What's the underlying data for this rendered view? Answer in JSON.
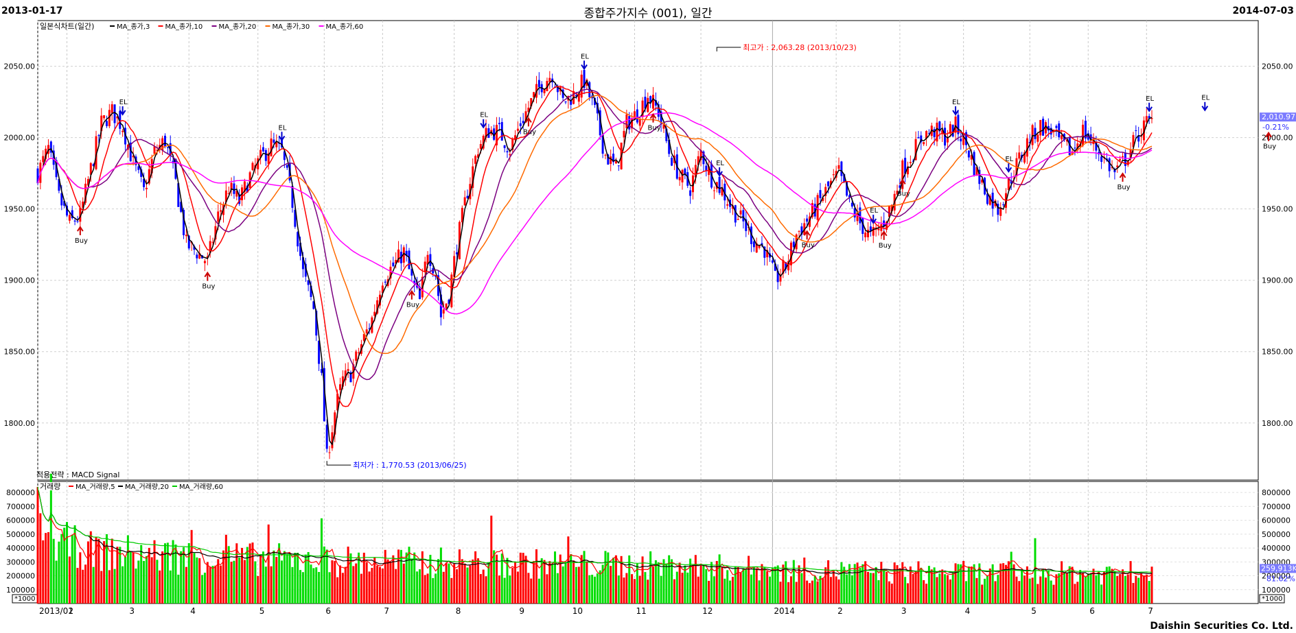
{
  "header": {
    "start_date": "2013-01-17",
    "title": "종합주가지수 (001), 일간",
    "end_date": "2014-07-03"
  },
  "footer": {
    "company": "Daishin Securities Co. Ltd."
  },
  "colors": {
    "up": "#ff0000",
    "down": "#0000ff",
    "ma3": "#000000",
    "ma10": "#ff0000",
    "ma20": "#7b0080",
    "ma30": "#ff6a00",
    "ma60": "#ff00ff",
    "vol_up": "#ff0000",
    "vol_down": "#00dd00",
    "vol_ma5": "#ff0000",
    "vol_ma20": "#000000",
    "vol_ma60": "#00cc00",
    "last_box": "#7b7bff"
  },
  "chart_data": [
    {
      "type": "candlestick",
      "title": "일본식차트(일간)",
      "legend": [
        {
          "label": "MA_종가,3",
          "color": "#000000"
        },
        {
          "label": "MA_종가,10",
          "color": "#ff0000"
        },
        {
          "label": "MA_종가,20",
          "color": "#7b0080"
        },
        {
          "label": "MA_종가,30",
          "color": "#ff6a00"
        },
        {
          "label": "MA_종가,60",
          "color": "#ff00ff"
        }
      ],
      "ylim": [
        1760,
        2082
      ],
      "yticks": [
        "2050.00",
        "2000.00",
        "1950.00",
        "1900.00",
        "1850.00",
        "1800.00"
      ],
      "ytick_values": [
        2050,
        2000,
        1950,
        1900,
        1850,
        1800
      ],
      "last_value": "2,010.97",
      "last_change": "-0.21%",
      "strategy": "적용전략 : MACD Signal",
      "high_annotation": {
        "text": "최고가 : 2,063.28 (2013/10/23)",
        "day": 256,
        "value": 2063.28
      },
      "low_annotation": {
        "text": "최저가 : 1,770.53 (2013/06/25)",
        "day": 109,
        "value": 1770.53
      },
      "signals": [
        {
          "type": "EL",
          "day": 32
        },
        {
          "type": "Buy",
          "day": 16
        },
        {
          "type": "EL",
          "day": 92
        },
        {
          "type": "Buy",
          "day": 64
        },
        {
          "type": "EL",
          "day": 168
        },
        {
          "type": "Buy",
          "day": 141
        },
        {
          "type": "EL",
          "day": 206
        },
        {
          "type": "Buy",
          "day": 185
        },
        {
          "type": "EL",
          "day": 257
        },
        {
          "type": "Buy",
          "day": 232
        },
        {
          "type": "EL",
          "day": 315
        },
        {
          "type": "Buy",
          "day": 290
        },
        {
          "type": "EL",
          "day": 346
        },
        {
          "type": "Buy",
          "day": 319
        },
        {
          "type": "EL",
          "day": 366
        },
        {
          "type": "Buy",
          "day": 326
        },
        {
          "type": "EL",
          "day": 419
        },
        {
          "type": "Buy",
          "day": 409
        },
        {
          "type": "EL",
          "day": 440
        },
        {
          "type": "Buy",
          "day": 464
        }
      ],
      "price_path": [
        [
          0,
          1975
        ],
        [
          4,
          1992
        ],
        [
          8,
          1958
        ],
        [
          12,
          1940
        ],
        [
          16,
          1945
        ],
        [
          20,
          1978
        ],
        [
          24,
          2010
        ],
        [
          28,
          2018
        ],
        [
          32,
          2008
        ],
        [
          36,
          1982
        ],
        [
          40,
          1962
        ],
        [
          44,
          1990
        ],
        [
          48,
          1998
        ],
        [
          52,
          1968
        ],
        [
          56,
          1925
        ],
        [
          60,
          1920
        ],
        [
          64,
          1913
        ],
        [
          68,
          1945
        ],
        [
          72,
          1965
        ],
        [
          76,
          1955
        ],
        [
          80,
          1973
        ],
        [
          84,
          1985
        ],
        [
          88,
          1995
        ],
        [
          92,
          1990
        ],
        [
          96,
          1955
        ],
        [
          100,
          1905
        ],
        [
          104,
          1880
        ],
        [
          107,
          1830
        ],
        [
          109,
          1775
        ],
        [
          112,
          1808
        ],
        [
          115,
          1830
        ],
        [
          118,
          1835
        ],
        [
          122,
          1855
        ],
        [
          126,
          1873
        ],
        [
          130,
          1902
        ],
        [
          134,
          1910
        ],
        [
          138,
          1920
        ],
        [
          141,
          1900
        ],
        [
          144,
          1885
        ],
        [
          147,
          1922
        ],
        [
          150,
          1905
        ],
        [
          152,
          1875
        ],
        [
          155,
          1890
        ],
        [
          158,
          1925
        ],
        [
          162,
          1963
        ],
        [
          166,
          1993
        ],
        [
          170,
          2005
        ],
        [
          174,
          2004
        ],
        [
          178,
          1992
        ],
        [
          182,
          2010
        ],
        [
          186,
          2025
        ],
        [
          190,
          2038
        ],
        [
          194,
          2045
        ],
        [
          198,
          2025
        ],
        [
          202,
          2030
        ],
        [
          206,
          2040
        ],
        [
          210,
          2018
        ],
        [
          214,
          1988
        ],
        [
          218,
          1978
        ],
        [
          222,
          2010
        ],
        [
          226,
          2017
        ],
        [
          230,
          2030
        ],
        [
          234,
          2018
        ],
        [
          238,
          1990
        ],
        [
          242,
          1973
        ],
        [
          246,
          1965
        ],
        [
          250,
          1990
        ],
        [
          254,
          1972
        ],
        [
          258,
          1963
        ],
        [
          262,
          1950
        ],
        [
          266,
          1940
        ],
        [
          270,
          1928
        ],
        [
          274,
          1922
        ],
        [
          278,
          1900
        ],
        [
          282,
          1910
        ],
        [
          286,
          1932
        ],
        [
          290,
          1942
        ],
        [
          294,
          1953
        ],
        [
          298,
          1965
        ],
        [
          302,
          1975
        ],
        [
          306,
          1953
        ],
        [
          310,
          1940
        ],
        [
          314,
          1930
        ],
        [
          318,
          1938
        ],
        [
          322,
          1953
        ],
        [
          326,
          1978
        ],
        [
          330,
          1990
        ],
        [
          334,
          2002
        ],
        [
          338,
          2005
        ],
        [
          342,
          2000
        ],
        [
          346,
          2008
        ],
        [
          350,
          1995
        ],
        [
          354,
          1975
        ],
        [
          358,
          1960
        ],
        [
          362,
          1950
        ],
        [
          366,
          1968
        ],
        [
          370,
          1985
        ],
        [
          374,
          2000
        ],
        [
          378,
          2008
        ],
        [
          382,
          2005
        ],
        [
          386,
          1995
        ],
        [
          390,
          1990
        ],
        [
          394,
          2005
        ],
        [
          398,
          1995
        ],
        [
          402,
          1985
        ],
        [
          406,
          1975
        ],
        [
          410,
          1985
        ],
        [
          414,
          2000
        ],
        [
          418,
          2010
        ],
        [
          420,
          2011
        ]
      ],
      "x_day_max": 420,
      "x_ticks": [
        "2013/01",
        "2",
        "3",
        "4",
        "5",
        "6",
        "7",
        "8",
        "9",
        "10",
        "11",
        "12",
        "2014",
        "2",
        "3",
        "4",
        "5",
        "6",
        "7"
      ],
      "x_tick_days": [
        0,
        11,
        34,
        57,
        83,
        108,
        130,
        157,
        181,
        201,
        225,
        250,
        277,
        301,
        325,
        349,
        374,
        396,
        418
      ],
      "year_boundary_day": 277
    },
    {
      "type": "bar",
      "title": "거래량",
      "legend": [
        {
          "label": "MA_거래량,5",
          "color": "#ff0000"
        },
        {
          "label": "MA_거래량,20",
          "color": "#000000"
        },
        {
          "label": "MA_거래량,60",
          "color": "#00cc00"
        }
      ],
      "ylim": [
        0,
        880000
      ],
      "yticks": [
        "800000",
        "700000",
        "600000",
        "500000",
        "400000",
        "300000",
        "200000",
        "100000"
      ],
      "ytick_values": [
        800000,
        700000,
        600000,
        500000,
        400000,
        300000,
        200000,
        100000
      ],
      "unit": "*1000",
      "last_value": "259,913K",
      "last_change": "81.62%",
      "volume_level_path": [
        [
          0,
          540000
        ],
        [
          6,
          500000
        ],
        [
          20,
          420000
        ],
        [
          50,
          380000
        ],
        [
          90,
          350000
        ],
        [
          140,
          330000
        ],
        [
          200,
          315000
        ],
        [
          240,
          300000
        ],
        [
          280,
          270000
        ],
        [
          320,
          250000
        ],
        [
          360,
          245000
        ],
        [
          400,
          245000
        ],
        [
          420,
          250000
        ]
      ]
    }
  ]
}
